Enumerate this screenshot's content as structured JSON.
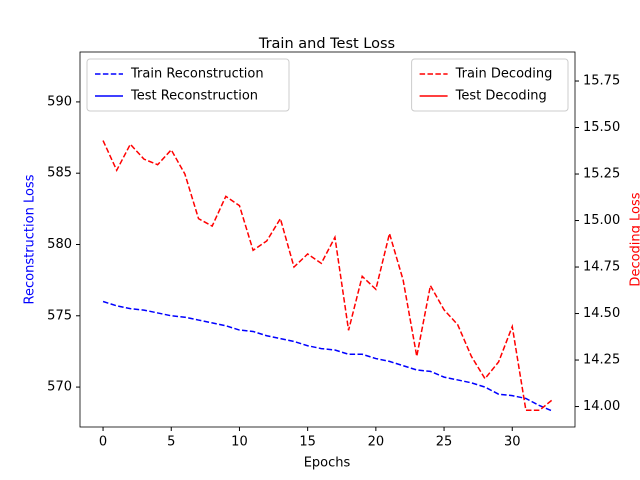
{
  "chart_data": {
    "type": "line",
    "title": "Train and Test Loss",
    "xlabel": "Epochs",
    "ylabel": "Reconstruction Loss",
    "y2label": "Decoding Loss",
    "x": [
      0,
      1,
      2,
      3,
      4,
      5,
      6,
      7,
      8,
      9,
      10,
      11,
      12,
      13,
      14,
      15,
      16,
      17,
      18,
      19,
      20,
      21,
      22,
      23,
      24,
      25,
      26,
      27,
      28,
      29,
      30,
      31,
      32,
      33
    ],
    "xlim": [
      -1.69,
      34.6
    ],
    "xticks": [
      0,
      5,
      10,
      15,
      20,
      25,
      30
    ],
    "ylim": [
      567.2,
      593.5
    ],
    "yticks": [
      570,
      575,
      580,
      585,
      590
    ],
    "y2lim": [
      13.89,
      15.906
    ],
    "y2ticks": [
      {
        "value": 14,
        "label": "14.00"
      },
      14.25,
      {
        "value": 14.5,
        "label": "14.50"
      },
      14.75,
      {
        "value": 15,
        "label": "15.00"
      },
      15.25,
      {
        "value": 15.5,
        "label": "15.50"
      },
      15.75
    ],
    "legend": "upper left",
    "legend2": "upper right",
    "series": [
      {
        "name": "Train Reconstruction",
        "color": "#0000ff",
        "linestyle": "dashed",
        "values": [
          576.0,
          575.7,
          575.5,
          575.4,
          575.2,
          575.0,
          574.9,
          574.7,
          574.5,
          574.3,
          574.0,
          573.9,
          573.6,
          573.4,
          573.2,
          572.9,
          572.7,
          572.6,
          572.3,
          572.3,
          572.0,
          571.8,
          571.5,
          571.2,
          571.1,
          570.7,
          570.5,
          570.3,
          570.0,
          569.5,
          569.4,
          569.2,
          568.7,
          568.3
        ]
      },
      {
        "name": "Test Reconstruction",
        "color": "#0000ff",
        "linestyle": "solid",
        "values": [
          null,
          null,
          null,
          null,
          null,
          null,
          null,
          null,
          null,
          null,
          null,
          null,
          null,
          null,
          null,
          null,
          null,
          null,
          null,
          null,
          null,
          null,
          null,
          null,
          null,
          null,
          null,
          null,
          null,
          null,
          null,
          null,
          null,
          null
        ]
      },
      {
        "name": "Train Decoding",
        "color": "#ff0000",
        "linestyle": "dashed",
        "axis": "y2",
        "values": [
          15.43,
          15.27,
          15.41,
          15.33,
          15.3,
          15.38,
          15.25,
          15.01,
          14.97,
          15.13,
          15.08,
          14.84,
          14.89,
          15.01,
          14.75,
          14.82,
          14.77,
          14.91,
          14.41,
          14.7,
          14.63,
          14.93,
          14.68,
          14.27,
          14.65,
          14.52,
          14.44,
          14.27,
          14.15,
          14.24,
          14.43,
          13.98,
          13.98,
          14.04
        ]
      },
      {
        "name": "Test Decoding",
        "color": "#ff0000",
        "linestyle": "solid",
        "axis": "y2",
        "values": [
          null,
          null,
          null,
          null,
          null,
          null,
          null,
          null,
          null,
          null,
          null,
          null,
          null,
          null,
          null,
          null,
          null,
          null,
          null,
          null,
          null,
          null,
          null,
          null,
          null,
          null,
          null,
          null,
          null,
          null,
          null,
          null,
          null,
          null
        ]
      }
    ]
  }
}
